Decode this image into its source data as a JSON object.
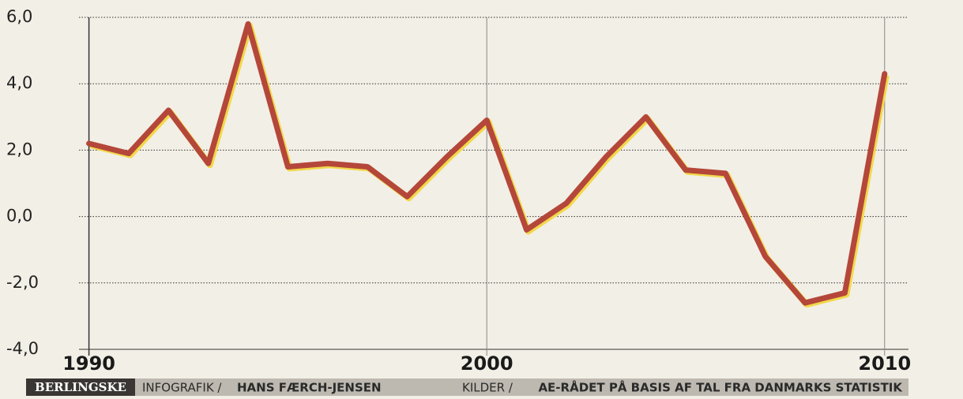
{
  "chart_data": {
    "type": "line",
    "x": [
      1990,
      1991,
      1992,
      1993,
      1994,
      1995,
      1996,
      1997,
      1998,
      1999,
      2000,
      2001,
      2002,
      2003,
      2004,
      2005,
      2006,
      2007,
      2008,
      2009,
      2010
    ],
    "values": [
      2.2,
      1.9,
      3.2,
      1.6,
      5.8,
      1.5,
      1.6,
      1.5,
      0.6,
      1.8,
      2.9,
      -0.4,
      0.4,
      1.8,
      3.0,
      1.4,
      1.3,
      -1.2,
      -2.6,
      -2.3,
      4.3
    ],
    "color": "#b4473a",
    "xlim": [
      1989.75,
      2010.6
    ],
    "xticks": [
      1990,
      2000,
      2010
    ],
    "ylim": [
      -4,
      6
    ],
    "yticks": [
      {
        "value": -4,
        "label": "-4,0"
      },
      {
        "value": -2,
        "label": "-2,0"
      },
      {
        "value": 0,
        "label": "0,0"
      },
      {
        "value": 2,
        "label": "2,0"
      },
      {
        "value": 4,
        "label": "4,0"
      },
      {
        "value": 6,
        "label": "6,0"
      }
    ],
    "grid": true,
    "credits": {
      "brand": "BERLINGSKE",
      "infographic_label": "INFOGRAFIK /",
      "author": "HANS FÆRCH-JENSEN",
      "sources_label": "KILDER /",
      "sources": "AE-RÅDET PÅ BASIS AF TAL FRA DANMARKS STATISTIK"
    }
  }
}
